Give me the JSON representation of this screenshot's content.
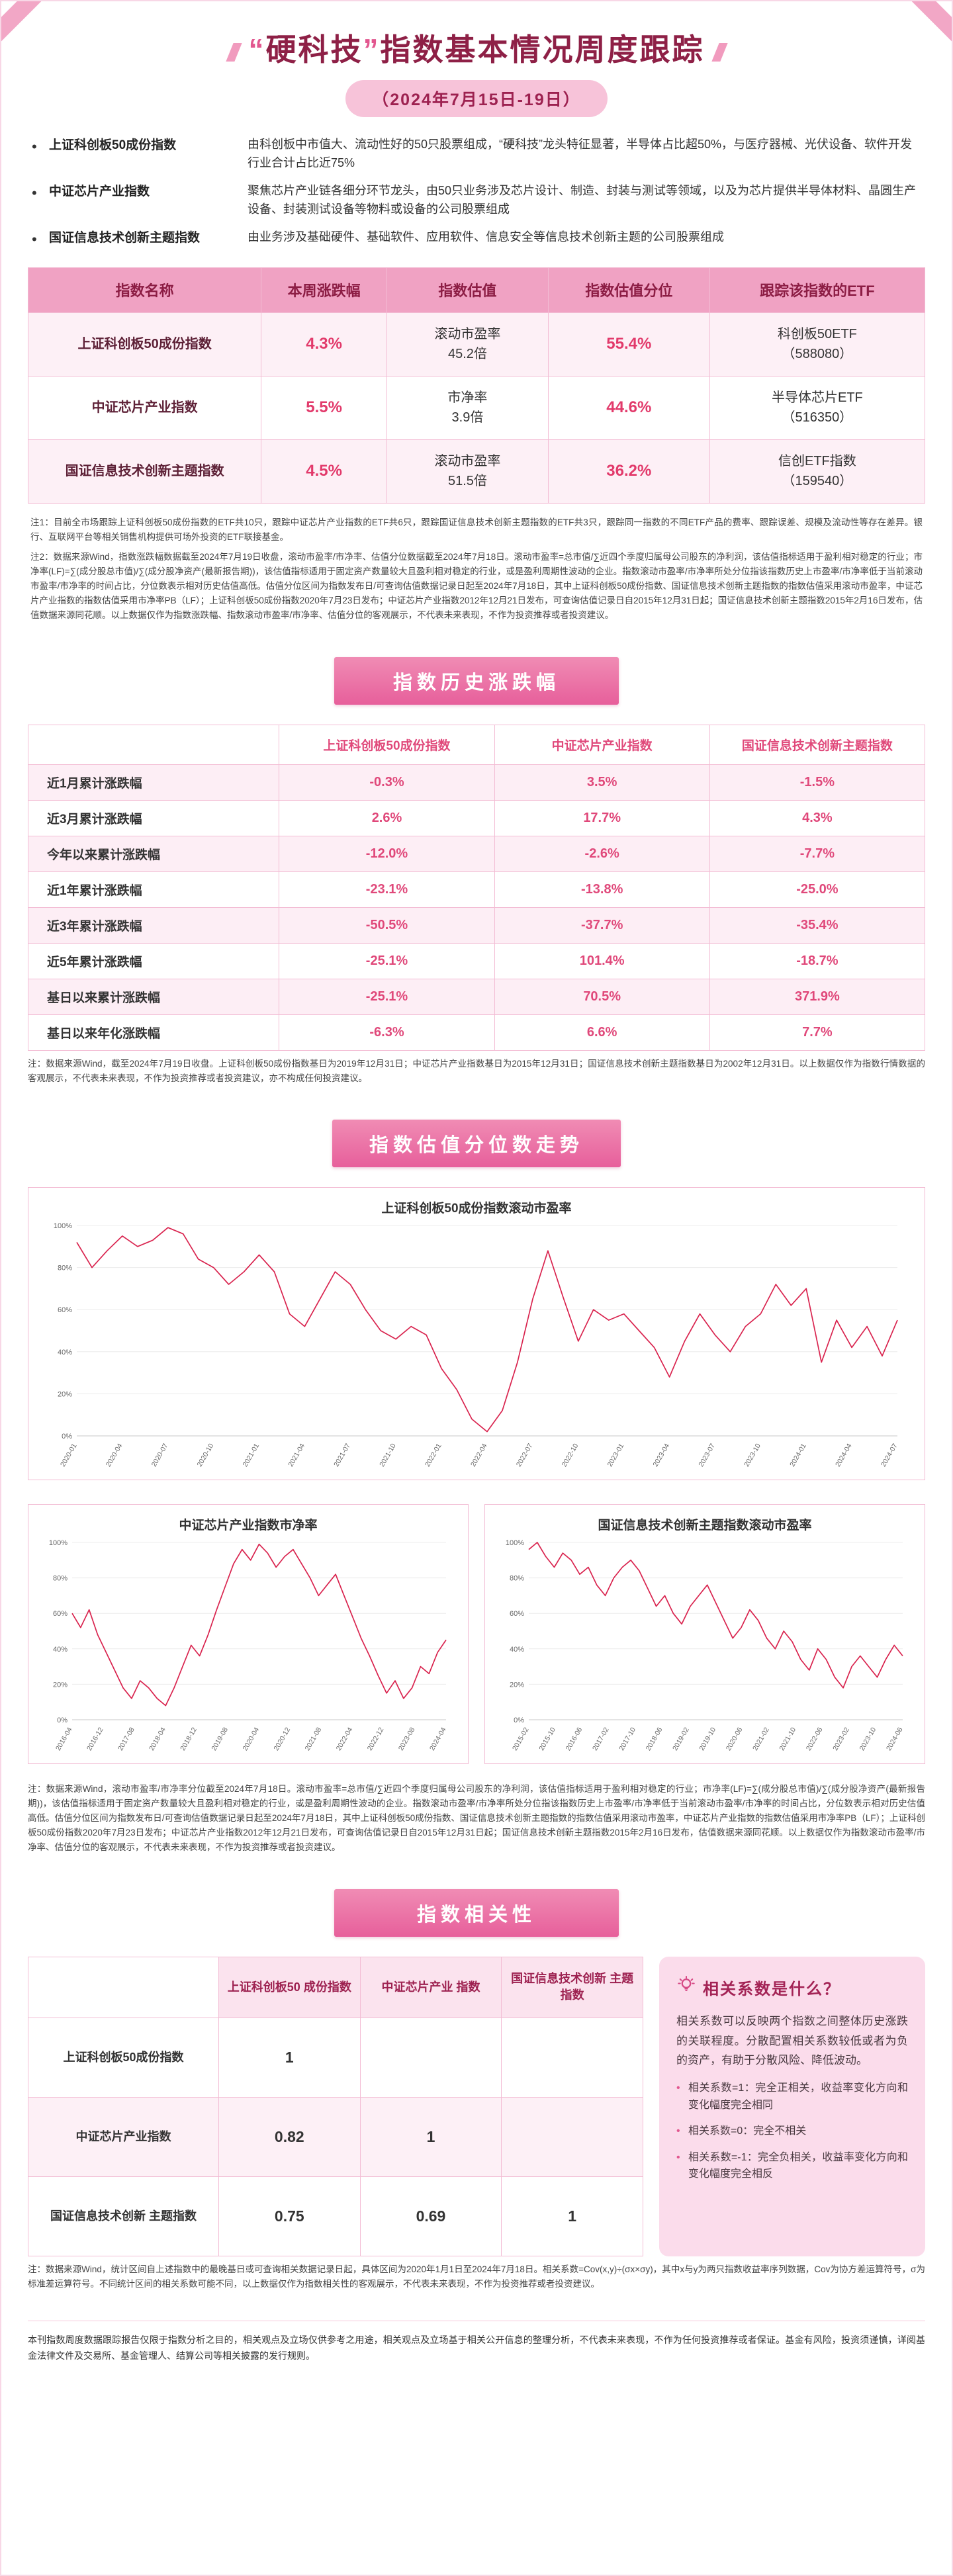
{
  "meta": {
    "colors": {
      "accent": "#e8639b",
      "banner": "#e75f9b",
      "value_red": "#e23a6b",
      "line_red": "#d9234e",
      "maroon": "#8e2046"
    }
  },
  "header": {
    "quote_open": "“",
    "brand": "硬科技",
    "quote_close": "”",
    "rest": "指数基本情况周度跟踪",
    "subtitle": "（2024年7月15日-19日）"
  },
  "intro": {
    "bullets": [
      {
        "term": "上证科创板50成份指数",
        "desc": "由科创板中市值大、流动性好的50只股票组成，“硬科技”龙头特征显著，半导体占比超50%，与医疗器械、光伏设备、软件开发行业合计占比近75%"
      },
      {
        "term": "中证芯片产业指数",
        "desc": "聚焦芯片产业链各细分环节龙头，由50只业务涉及芯片设计、制造、封装与测试等领域，以及为芯片提供半导体材料、晶圆生产设备、封装测试设备等物料或设备的公司股票组成"
      },
      {
        "term": "国证信息技术创新主题指数",
        "desc": "由业务涉及基础硬件、基础软件、应用软件、信息安全等信息技术创新主题的公司股票组成"
      }
    ]
  },
  "table1": {
    "headers": [
      "指数名称",
      "本周涨跌幅",
      "指数估值",
      "指数估值分位",
      "跟踪该指数的ETF"
    ],
    "rows": [
      {
        "name": "上证科创板50成份指数",
        "week_change": "4.3%",
        "valuation_line1": "滚动市盈率",
        "valuation_line2": "45.2倍",
        "percentile": "55.4%",
        "etf_name": "科创板50ETF",
        "etf_code": "（588080）"
      },
      {
        "name": "中证芯片产业指数",
        "week_change": "5.5%",
        "valuation_line1": "市净率",
        "valuation_line2": "3.9倍",
        "percentile": "44.6%",
        "etf_name": "半导体芯片ETF",
        "etf_code": "（516350）"
      },
      {
        "name": "国证信息技术创新主题指数",
        "week_change": "4.5%",
        "valuation_line1": "滚动市盈率",
        "valuation_line2": "51.5倍",
        "percentile": "36.2%",
        "etf_name": "信创ETF指数",
        "etf_code": "（159540）"
      }
    ]
  },
  "notes_top": [
    "注1：目前全市场跟踪上证科创板50成份指数的ETF共10只，跟踪中证芯片产业指数的ETF共6只，跟踪国证信息技术创新主题指数的ETF共3只，跟踪同一指数的不同ETF产品的费率、跟踪误差、规模及流动性等存在差异。银行、互联网平台等相关销售机构提供可场外投资的ETF联接基金。",
    "注2：数据来源Wind，指数涨跌幅数据截至2024年7月19日收盘，滚动市盈率/市净率、估值分位数据截至2024年7月18日。滚动市盈率=总市值/∑近四个季度归属母公司股东的净利润，该估值指标适用于盈利相对稳定的行业；市净率(LF)=∑(成分股总市值)/∑(成分股净资产(最新报告期))，该估值指标适用于固定资产数量较大且盈利相对稳定的行业，或是盈利周期性波动的企业。指数滚动市盈率/市净率所处分位指该指数历史上市盈率/市净率低于当前滚动市盈率/市净率的时间占比，分位数表示相对历史估值高低。估值分位区间为指数发布日/可查询估值数据记录日起至2024年7月18日，其中上证科创板50成份指数、国证信息技术创新主题指数的指数估值采用滚动市盈率，中证芯片产业指数的指数估值采用市净率PB（LF）；上证科创板50成份指数2020年7月23日发布；中证芯片产业指数2012年12月21日发布，可查询估值记录日自2015年12月31日起；国证信息技术创新主题指数2015年2月16日发布，估值数据来源同花顺。以上数据仅作为指数涨跌幅、指数滚动市盈率/市净率、估值分位的客观展示，不代表未来表现，不作为投资推荐或者投资建议。"
  ],
  "history": {
    "title": "指数历史涨跌幅",
    "columns": [
      "上证科创板50成份指数",
      "中证芯片产业指数",
      "国证信息技术创新主题指数"
    ],
    "rows": [
      {
        "label": "近1月累计涨跌幅",
        "values": [
          "-0.3%",
          "3.5%",
          "-1.5%"
        ]
      },
      {
        "label": "近3月累计涨跌幅",
        "values": [
          "2.6%",
          "17.7%",
          "4.3%"
        ]
      },
      {
        "label": "今年以来累计涨跌幅",
        "values": [
          "-12.0%",
          "-2.6%",
          "-7.7%"
        ]
      },
      {
        "label": "近1年累计涨跌幅",
        "values": [
          "-23.1%",
          "-13.8%",
          "-25.0%"
        ]
      },
      {
        "label": "近3年累计涨跌幅",
        "values": [
          "-50.5%",
          "-37.7%",
          "-35.4%"
        ]
      },
      {
        "label": "近5年累计涨跌幅",
        "values": [
          "-25.1%",
          "101.4%",
          "-18.7%"
        ]
      },
      {
        "label": "基日以来累计涨跌幅",
        "values": [
          "-25.1%",
          "70.5%",
          "371.9%"
        ]
      },
      {
        "label": "基日以来年化涨跌幅",
        "values": [
          "-6.3%",
          "6.6%",
          "7.7%"
        ]
      }
    ],
    "note": "注：数据来源Wind，截至2024年7月19日收盘。上证科创板50成份指数基日为2019年12月31日；中证芯片产业指数基日为2015年12月31日；国证信息技术创新主题指数基日为2002年12月31日。以上数据仅作为指数行情数据的客观展示，不代表未来表现，不作为投资推荐或者投资建议，亦不构成任何投资建议。"
  },
  "valuation": {
    "title": "指数估值分位数走势",
    "note": "注：数据来源Wind，滚动市盈率/市净率分位截至2024年7月18日。滚动市盈率=总市值/∑近四个季度归属母公司股东的净利润，该估值指标适用于盈利相对稳定的行业；市净率(LF)=∑(成分股总市值)/∑(成分股净资产(最新报告期))，该估值指标适用于固定资产数量较大且盈利相对稳定的行业，或是盈利周期性波动的企业。指数滚动市盈率/市净率所处分位指该指数历史上市盈率/市净率低于当前滚动市盈率/市净率的时间占比，分位数表示相对历史估值高低。估值分位区间为指数发布日/可查询估值数据记录日起至2024年7月18日，其中上证科创板50成份指数、国证信息技术创新主题指数的指数估值采用滚动市盈率，中证芯片产业指数的指数估值采用市净率PB（LF）；上证科创板50成份指数2020年7月23日发布；中证芯片产业指数2012年12月21日发布，可查询估值记录日自2015年12月31日起；国证信息技术创新主题指数2015年2月16日发布，估值数据来源同花顺。以上数据仅作为指数滚动市盈率/市净率、估值分位的客观展示，不代表未来表现，不作为投资推荐或者投资建议。"
  },
  "chart_data": [
    {
      "type": "line",
      "title": "上证科创板50成份指数滚动市盈率",
      "ylabel": "估值分位",
      "ylim": [
        0,
        100
      ],
      "yticks": [
        "0%",
        "20%",
        "40%",
        "60%",
        "80%",
        "100%"
      ],
      "grid": true,
      "legend": "none",
      "line_color": "#d9234e",
      "x_labels": [
        "2020-01",
        "2020-04",
        "2020-07",
        "2020-10",
        "2021-01",
        "2021-04",
        "2021-07",
        "2021-10",
        "2022-01",
        "2022-04",
        "2022-07",
        "2022-10",
        "2023-01",
        "2023-04",
        "2023-07",
        "2023-10",
        "2024-01",
        "2024-04",
        "2024-07"
      ],
      "values": [
        92,
        80,
        88,
        95,
        90,
        93,
        99,
        96,
        84,
        80,
        72,
        78,
        86,
        78,
        58,
        52,
        65,
        78,
        72,
        60,
        50,
        46,
        52,
        48,
        32,
        22,
        8,
        2,
        12,
        35,
        65,
        88,
        66,
        45,
        60,
        55,
        58,
        50,
        42,
        28,
        45,
        58,
        48,
        40,
        52,
        58,
        72,
        62,
        70,
        35,
        55,
        42,
        52,
        38,
        55
      ]
    },
    {
      "type": "line",
      "title": "中证芯片产业指数市净率",
      "ylabel": "估值分位",
      "ylim": [
        0,
        100
      ],
      "yticks": [
        "0%",
        "20%",
        "40%",
        "60%",
        "80%",
        "100%"
      ],
      "grid": true,
      "legend": "none",
      "line_color": "#d9234e",
      "x_labels": [
        "2016-04",
        "2016-12",
        "2017-08",
        "2018-04",
        "2018-12",
        "2019-08",
        "2020-04",
        "2020-12",
        "2021-08",
        "2022-04",
        "2022-12",
        "2023-08",
        "2024-04"
      ],
      "values": [
        60,
        52,
        62,
        48,
        38,
        28,
        18,
        12,
        22,
        18,
        12,
        8,
        18,
        30,
        42,
        36,
        48,
        62,
        75,
        88,
        96,
        90,
        99,
        94,
        86,
        92,
        96,
        88,
        80,
        70,
        76,
        82,
        70,
        58,
        46,
        36,
        25,
        15,
        22,
        12,
        18,
        30,
        26,
        38,
        45
      ]
    },
    {
      "type": "line",
      "title": "国证信息技术创新主题指数滚动市盈率",
      "ylabel": "估值分位",
      "ylim": [
        0,
        100
      ],
      "yticks": [
        "0%",
        "20%",
        "40%",
        "60%",
        "80%",
        "100%"
      ],
      "grid": true,
      "legend": "none",
      "line_color": "#d9234e",
      "x_labels": [
        "2015-02",
        "2015-10",
        "2016-06",
        "2017-02",
        "2017-10",
        "2018-06",
        "2019-02",
        "2019-10",
        "2020-06",
        "2021-02",
        "2021-10",
        "2022-06",
        "2023-02",
        "2023-10",
        "2024-06"
      ],
      "values": [
        96,
        100,
        92,
        86,
        94,
        90,
        82,
        86,
        76,
        70,
        80,
        86,
        90,
        84,
        74,
        64,
        70,
        60,
        54,
        64,
        70,
        76,
        66,
        56,
        46,
        52,
        62,
        56,
        46,
        40,
        50,
        44,
        34,
        28,
        40,
        34,
        24,
        18,
        30,
        36,
        30,
        24,
        34,
        42,
        36
      ]
    }
  ],
  "correlation": {
    "title": "指数相关性",
    "columns": [
      "上证科创板50\n成份指数",
      "中证芯片产业\n指数",
      "国证信息技术创新\n主题指数"
    ],
    "rows": [
      {
        "label": "上证科创板50成份指数",
        "values": [
          "1",
          "",
          ""
        ]
      },
      {
        "label": "中证芯片产业指数",
        "values": [
          "0.82",
          "1",
          ""
        ]
      },
      {
        "label": "国证信息技术创新\n主题指数",
        "values": [
          "0.75",
          "0.69",
          "1"
        ]
      }
    ],
    "sidebar": {
      "title": "相关系数是什么？",
      "desc": "相关系数可以反映两个指数之间整体历史涨跌的关联程度。分散配置相关系数较低或者为负的资产，有助于分散风险、降低波动。",
      "bullets": [
        "相关系数=1：完全正相关，收益率变化方向和变化幅度完全相同",
        "相关系数=0：完全不相关",
        "相关系数=-1：完全负相关，收益率变化方向和变化幅度完全相反"
      ]
    },
    "note": "注：数据来源Wind，统计区间自上述指数中的最晚基日或可查询相关数据记录日起，具体区间为2020年1月1日至2024年7月18日。相关系数=Cov(x,y)÷(σx×σy)，其中x与y为两只指数收益率序列数据，Cov为协方差运算符号，σ为标准差运算符号。不同统计区间的相关系数可能不同，以上数据仅作为指数相关性的客观展示，不代表未来表现，不作为投资推荐或者投资建议。"
  },
  "footer": "本刊指数周度数据跟踪报告仅限于指数分析之目的，相关观点及立场仅供参考之用途，相关观点及立场基于相关公开信息的整理分析，不代表未来表现，不作为任何投资推荐或者保证。基金有风险，投资须谨慎，详阅基金法律文件及交易所、基金管理人、结算公司等相关披露的发行规则。"
}
